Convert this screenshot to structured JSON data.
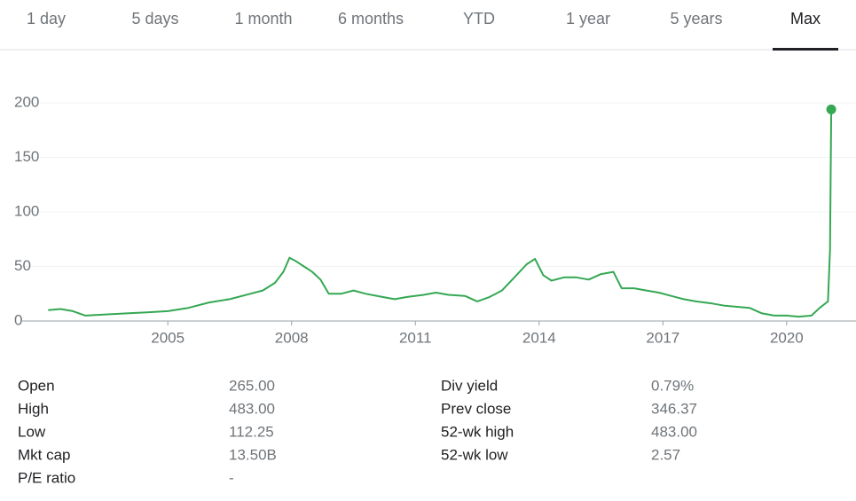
{
  "tabs": {
    "items": [
      "1 day",
      "5 days",
      "1 month",
      "6 months",
      "YTD",
      "1 year",
      "5 years",
      "Max"
    ],
    "selected": 7
  },
  "chart_data": {
    "type": "line",
    "color": "#34a853",
    "x": [
      2002.1,
      2002.4,
      2002.7,
      2003.0,
      2003.5,
      2004.0,
      2004.5,
      2005.0,
      2005.5,
      2006.0,
      2006.5,
      2007.0,
      2007.3,
      2007.6,
      2007.8,
      2007.95,
      2008.1,
      2008.3,
      2008.5,
      2008.7,
      2008.9,
      2009.2,
      2009.5,
      2009.8,
      2010.2,
      2010.5,
      2010.8,
      2011.2,
      2011.5,
      2011.8,
      2012.2,
      2012.5,
      2012.8,
      2013.1,
      2013.4,
      2013.7,
      2013.9,
      2014.1,
      2014.3,
      2014.6,
      2014.9,
      2015.2,
      2015.5,
      2015.8,
      2016.0,
      2016.3,
      2016.6,
      2016.9,
      2017.2,
      2017.5,
      2017.8,
      2018.2,
      2018.5,
      2018.8,
      2019.1,
      2019.4,
      2019.7,
      2020.0,
      2020.3,
      2020.6,
      2020.8,
      2021.0,
      2021.05,
      2021.08
    ],
    "values": [
      10,
      11,
      9,
      5,
      6,
      7,
      8,
      9,
      12,
      17,
      20,
      25,
      28,
      35,
      45,
      58,
      55,
      50,
      45,
      38,
      25,
      25,
      28,
      25,
      22,
      20,
      22,
      24,
      26,
      24,
      23,
      18,
      22,
      28,
      40,
      52,
      57,
      42,
      37,
      40,
      40,
      38,
      43,
      45,
      30,
      30,
      28,
      26,
      23,
      20,
      18,
      16,
      14,
      13,
      12,
      7,
      5,
      5,
      4,
      5,
      12,
      18,
      65,
      194
    ],
    "xlim": [
      2001.47,
      2021.68
    ],
    "xticks": [
      2005,
      2008,
      2011,
      2014,
      2017,
      2020
    ],
    "ylim": [
      0,
      200
    ],
    "yticks": [
      0,
      50,
      100,
      150,
      200
    ],
    "grid": true
  },
  "stats": {
    "left": [
      {
        "label": "Open",
        "value": "265.00"
      },
      {
        "label": "High",
        "value": "483.00"
      },
      {
        "label": "Low",
        "value": "112.25"
      },
      {
        "label": "Mkt cap",
        "value": "13.50B"
      },
      {
        "label": "P/E ratio",
        "value": "-"
      }
    ],
    "right": [
      {
        "label": "Div yield",
        "value": "0.79%"
      },
      {
        "label": "Prev close",
        "value": "346.37"
      },
      {
        "label": "52-wk high",
        "value": "483.00"
      },
      {
        "label": "52-wk low",
        "value": "2.57"
      }
    ]
  }
}
